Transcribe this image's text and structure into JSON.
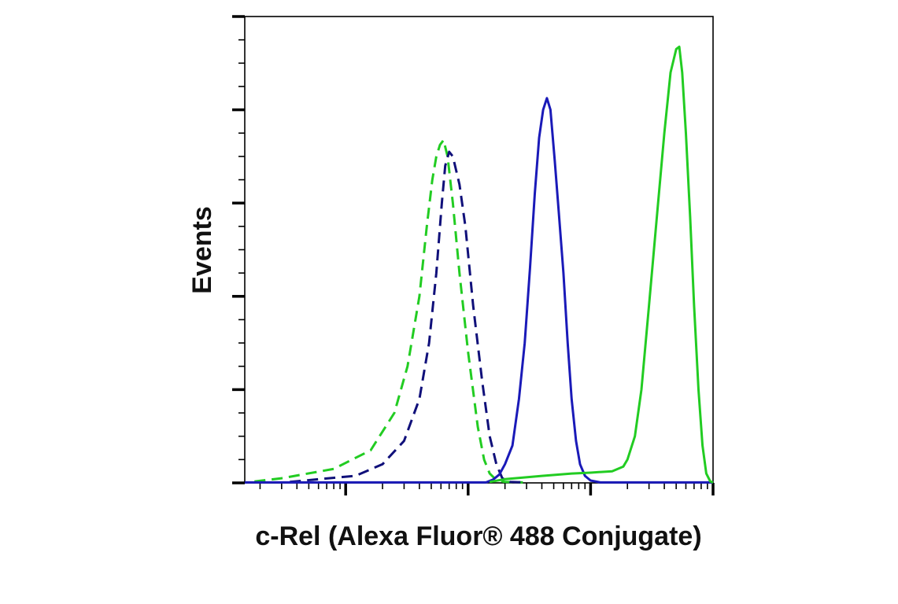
{
  "chart_data": {
    "type": "line",
    "title": "",
    "xlabel": "c-Rel (Alexa Fluor® 488 Conjugate)",
    "ylabel": "Events",
    "x_scale": "log",
    "xlim": [
      0.15,
      1000
    ],
    "ylim": [
      0,
      100
    ],
    "grid": false,
    "legend": "none",
    "series": [
      {
        "color": "#22cc22",
        "dash": "dashed",
        "points": [
          [
            0.18,
            0.3
          ],
          [
            0.3,
            1
          ],
          [
            0.8,
            3
          ],
          [
            1.6,
            7
          ],
          [
            2.5,
            15
          ],
          [
            3.2,
            25
          ],
          [
            4,
            40
          ],
          [
            4.6,
            55
          ],
          [
            5.1,
            65
          ],
          [
            5.5,
            70
          ],
          [
            5.9,
            72.5
          ],
          [
            6.3,
            73.5
          ],
          [
            6.8,
            70
          ],
          [
            7.5,
            60
          ],
          [
            8.5,
            45
          ],
          [
            10,
            28
          ],
          [
            12,
            12
          ],
          [
            13.5,
            5
          ],
          [
            15,
            2
          ],
          [
            17,
            0.6
          ],
          [
            20,
            0.2
          ],
          [
            28,
            0.1
          ]
        ]
      },
      {
        "color": "#10107a",
        "dash": "dashed",
        "points": [
          [
            0.35,
            0.2
          ],
          [
            0.6,
            0.8
          ],
          [
            1.2,
            1.5
          ],
          [
            2,
            4
          ],
          [
            3,
            9
          ],
          [
            4,
            18
          ],
          [
            4.8,
            30
          ],
          [
            5.5,
            45
          ],
          [
            6.1,
            60
          ],
          [
            6.5,
            68
          ],
          [
            7,
            71
          ],
          [
            7.5,
            70
          ],
          [
            8.5,
            64
          ],
          [
            9.5,
            55
          ],
          [
            11,
            38
          ],
          [
            13,
            22
          ],
          [
            15,
            10
          ],
          [
            17,
            4
          ],
          [
            19,
            1
          ],
          [
            22,
            0.2
          ],
          [
            28,
            0.1
          ]
        ]
      },
      {
        "color": "#1a1ab8",
        "dash": "solid",
        "points": [
          [
            0.15,
            0.1
          ],
          [
            14,
            0.1
          ],
          [
            16,
            0.7
          ],
          [
            18,
            1.8
          ],
          [
            20,
            4
          ],
          [
            23,
            8
          ],
          [
            26,
            18
          ],
          [
            29,
            30
          ],
          [
            32,
            46
          ],
          [
            35,
            62
          ],
          [
            38,
            74
          ],
          [
            41,
            80
          ],
          [
            44,
            82.5
          ],
          [
            47,
            80
          ],
          [
            51,
            69
          ],
          [
            55,
            58
          ],
          [
            60,
            45
          ],
          [
            65,
            30
          ],
          [
            70,
            18
          ],
          [
            76,
            9
          ],
          [
            82,
            4
          ],
          [
            90,
            1.5
          ],
          [
            100,
            0.5
          ],
          [
            120,
            0.1
          ],
          [
            1000,
            0.1
          ]
        ]
      },
      {
        "color": "#22cc22",
        "dash": "solid",
        "points": [
          [
            15,
            0.2
          ],
          [
            20,
            0.8
          ],
          [
            40,
            1.5
          ],
          [
            70,
            2
          ],
          [
            100,
            2.2
          ],
          [
            150,
            2.5
          ],
          [
            185,
            3.5
          ],
          [
            200,
            5
          ],
          [
            230,
            10
          ],
          [
            260,
            20
          ],
          [
            300,
            38
          ],
          [
            350,
            58
          ],
          [
            400,
            75
          ],
          [
            450,
            88
          ],
          [
            500,
            93
          ],
          [
            530,
            93.5
          ],
          [
            560,
            88
          ],
          [
            600,
            75
          ],
          [
            650,
            57
          ],
          [
            700,
            38
          ],
          [
            760,
            20
          ],
          [
            820,
            8
          ],
          [
            880,
            2
          ],
          [
            950,
            0.3
          ],
          [
            1000,
            0.1
          ]
        ]
      }
    ]
  }
}
